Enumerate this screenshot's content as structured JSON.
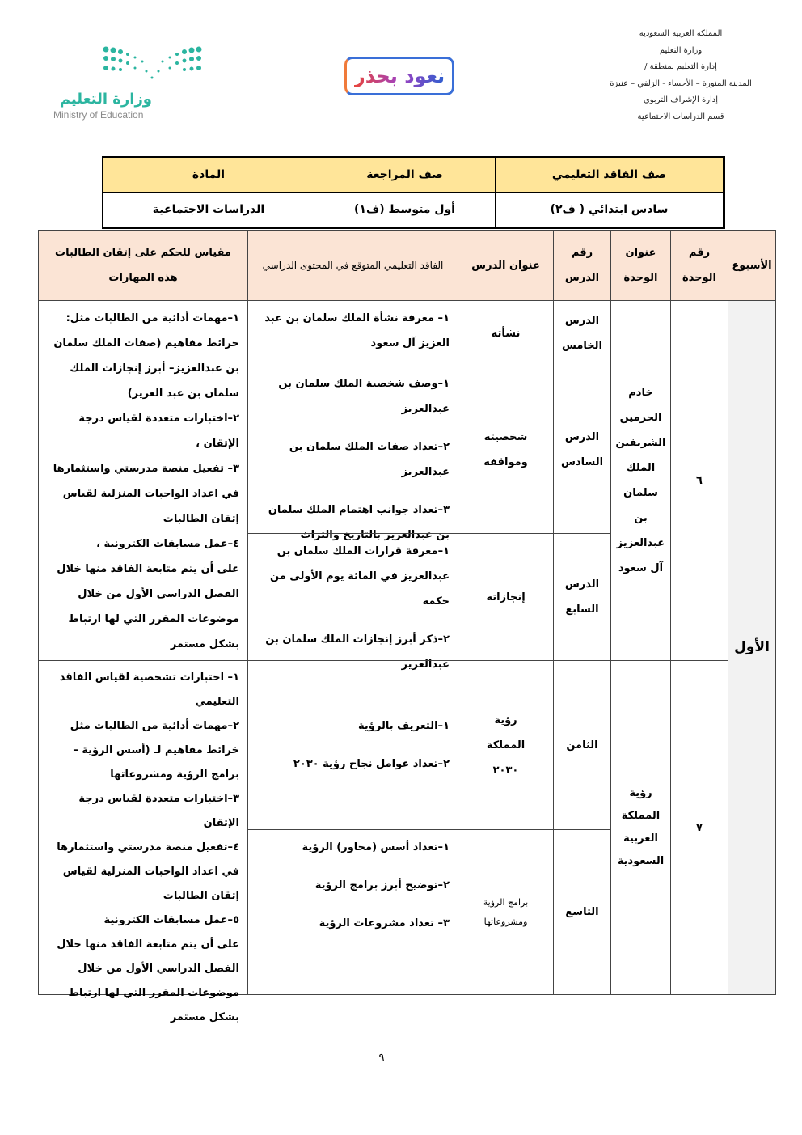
{
  "header": {
    "lines": [
      "المملكة العربية السعودية",
      "وزارة التعليم",
      "إدارة التعليم بمنطقة /",
      "المدينة المنورة – الأحساء - الزلفي – عنيزة",
      "إدارة الإشراف التربوي",
      "قسم الدراسات الاجتماعية"
    ],
    "campaign_logo_text": "نعود بحذر",
    "ministry_logo": {
      "arabic": "وزارة التعليم",
      "english": "Ministry of Education"
    }
  },
  "summary": {
    "headers": [
      "صف الفاقد التعليمي",
      "صف المراجعة",
      "المادة"
    ],
    "values": [
      "سادس ابتدائي ( ف٢)",
      "أول متوسط  (ف١)",
      "الدراسات الاجتماعية"
    ]
  },
  "table": {
    "headers": {
      "week": "الأسبوع",
      "unit_no": "رقم الوحدة",
      "unit_title": "عنوان الوحدة",
      "lesson_no": "رقم الدرس",
      "lesson_title": "عنوان الدرس",
      "loss": "الفاقد التعليمي المتوقع في المحتوى الدراسي",
      "measure": "مقياس للحكم على إتقان الطالبات هذه المهارات"
    },
    "week": "الأول",
    "units": [
      {
        "no": "٦",
        "title": "خادم الحرمين الشريفين الملك سلمان بن عبدالعزيز آل سعود",
        "measure": [
          "١–مهمات أدائية من الطالبات مثل: خرائط مفاهيم (صفات الملك سلمان بن عبدالعزيز– أبرز إنجازات الملك سلمان بن عبد العزيز)",
          "٢–اختبارات متعددة لقياس درجة الإتقان ،",
          "٣– تفعيل منصة مدرستي واستثمارها في اعداد الواجبات المنزلية لقياس إتقان الطالبات",
          "٤–عمل مسابقات الكترونية ،",
          "على أن يتم متابعة الفاقد منها خلال الفصل الدراسي الأول من خلال موضوعات المقرر التي لها ارتباط بشكل مستمر"
        ],
        "lessons": [
          {
            "no": "الدرس الخامس",
            "title": "نشأته",
            "loss": [
              "١–  معرفة نشأة الملك سلمان بن عبد العزيز آل سعود"
            ]
          },
          {
            "no": "الدرس السادس",
            "title": "شخصيته ومواقفه",
            "loss": [
              "١–وصف شخصية الملك سلمان بن عبدالعزيز",
              "٢–تعداد صفات الملك سلمان بن عبدالعزيز",
              "٣–تعداد جوانب اهتمام الملك سلمان بن عبدالعزيز بالتاريخ والتراث"
            ]
          },
          {
            "no": "الدرس السابع",
            "title": "إنجازاته",
            "loss": [
              "١–معرفة قرارات الملك سلمان بن عبدالعزيز في المائة يوم الأولى من حكمه",
              "٢–ذكر أبرز إنجازات الملك سلمان بن عبدالعزيز"
            ]
          }
        ]
      },
      {
        "no": "٧",
        "title": "رؤية المملكة العربية السعودية",
        "measure": [
          "١– اختبارات تشخصية لقياس الفاقد التعليمي",
          "٢–مهمات أدائية من الطالبات مثل خرائط مفاهيم لـ (أسس الرؤية – برامج الرؤية ومشروعاتها",
          "٣–اختبارات متعددة لقياس درجة الإتقان",
          "٤–تفعيل منصة مدرستي واستثمارها في اعداد الواجبات المنزلية لقياس إتقان الطالبات",
          "٥–عمل مسابقات الكترونية",
          "على أن يتم متابعة الفاقد منها خلال الفصل الدراسي الأول من خلال موضوعات المقرر التي لها ارتباط بشكل مستمر"
        ],
        "lessons": [
          {
            "no": "الثامن",
            "title": "رؤية المملكة ٢٠٣٠",
            "loss": [
              "١–التعريف بالرؤية",
              "٢–تعداد عوامل نجاح رؤية ٢٠٣٠"
            ]
          },
          {
            "no": "التاسع",
            "title": "برامج الرؤية ومشروعاتها",
            "loss": [
              "١–تعداد أسس (محاور) الرؤية",
              "٢–توضيح أبرز برامج الرؤية",
              "٣– تعداد مشروعات الرؤية"
            ]
          }
        ]
      }
    ]
  },
  "footer": {
    "page_number": "٩"
  },
  "colors": {
    "summary_fill": "#ffe599",
    "header_fill": "#fbe4d5",
    "week_fill": "#f2f2f2",
    "ministry_teal": "#2bb5a0"
  }
}
